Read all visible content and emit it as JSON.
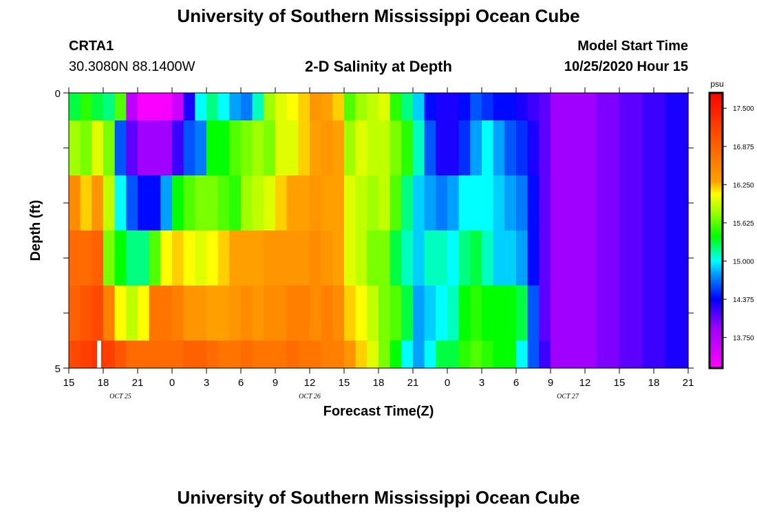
{
  "header": {
    "title": "University of Southern Mississippi Ocean Cube",
    "station_id": "CRTA1",
    "coordinates": "30.3080N 88.1400W",
    "plot_title": "2-D Salinity at Depth",
    "model_start_label": "Model Start Time",
    "model_start_value": "10/25/2020 Hour 15"
  },
  "footer": {
    "title": "University of Southern Mississippi Ocean Cube"
  },
  "chart_data": {
    "type": "heatmap",
    "xlabel": "Forecast Time(Z)",
    "ylabel": "Depth (ft)",
    "ylim": [
      0,
      5
    ],
    "y_tick_labels": [
      "0",
      "5"
    ],
    "x_tick_labels": [
      "15",
      "18",
      "21",
      "0",
      "3",
      "6",
      "9",
      "12",
      "15",
      "18",
      "21",
      "0",
      "3",
      "6",
      "9",
      "12",
      "15",
      "18",
      "21"
    ],
    "date_labels": [
      {
        "label": "OCT 25",
        "hour_index": 4.5
      },
      {
        "label": "OCT 26",
        "hour_index": 21
      },
      {
        "label": "OCT 27",
        "hour_index": 43.5
      }
    ],
    "hours": 54,
    "colorbar": {
      "unit": "psu",
      "min": 13.25,
      "max": 17.75,
      "tick_labels": [
        "17.500",
        "16.875",
        "16.250",
        "15.625",
        "15.000",
        "14.375",
        "13.750"
      ],
      "tick_values": [
        17.5,
        16.875,
        16.25,
        15.625,
        15.0,
        14.375,
        13.75
      ],
      "colors": [
        {
          "v": 13.25,
          "c": "#ff00ff"
        },
        {
          "v": 13.9,
          "c": "#a000ff"
        },
        {
          "v": 14.375,
          "c": "#0000ff"
        },
        {
          "v": 14.8,
          "c": "#00a0ff"
        },
        {
          "v": 15.0,
          "c": "#00ffff"
        },
        {
          "v": 15.4,
          "c": "#00ff00"
        },
        {
          "v": 15.8,
          "c": "#a0ff00"
        },
        {
          "v": 16.1,
          "c": "#ffff00"
        },
        {
          "v": 16.3,
          "c": "#ffa000"
        },
        {
          "v": 16.9,
          "c": "#ff6000"
        },
        {
          "v": 17.75,
          "c": "#ff0000"
        }
      ]
    },
    "depth_layers": [
      {
        "depth_range": [
          0,
          0.5
        ],
        "values": [
          15.3,
          15.5,
          15.3,
          15.2,
          15.6,
          13.7,
          13.3,
          13.3,
          13.3,
          13.6,
          14.3,
          15.0,
          15.2,
          15.0,
          14.8,
          14.7,
          15.1,
          15.8,
          16.0,
          16.1,
          16.2,
          16.4,
          16.3,
          16.2,
          15.6,
          15.8,
          15.9,
          16.0,
          15.5,
          15.2,
          14.9,
          14.4,
          14.3,
          14.3,
          14.4,
          14.6,
          14.5,
          14.4,
          14.4,
          14.3,
          14.2,
          14.1,
          13.9,
          13.9,
          13.9,
          13.9,
          14.0,
          14.0,
          14.1,
          14.1,
          14.2,
          14.2,
          14.3,
          14.3
        ]
      },
      {
        "depth_range": [
          0.5,
          1.5
        ],
        "values": [
          15.8,
          15.7,
          16.0,
          15.7,
          14.6,
          14.1,
          13.9,
          13.9,
          13.9,
          14.2,
          14.6,
          14.7,
          15.4,
          15.4,
          15.6,
          15.7,
          15.8,
          15.7,
          16.0,
          16.0,
          16.2,
          16.3,
          16.4,
          16.3,
          15.8,
          16.0,
          15.9,
          15.9,
          15.7,
          15.5,
          15.1,
          14.6,
          14.3,
          14.3,
          14.5,
          14.8,
          15.0,
          14.8,
          14.6,
          14.5,
          14.3,
          14.1,
          13.9,
          13.9,
          13.9,
          13.9,
          14.0,
          14.0,
          14.1,
          14.1,
          14.2,
          14.2,
          14.3,
          14.3
        ]
      },
      {
        "depth_range": [
          1.5,
          2.5
        ],
        "values": [
          16.5,
          16.2,
          16.4,
          15.9,
          15.0,
          14.6,
          14.4,
          14.4,
          14.8,
          15.4,
          15.6,
          15.7,
          15.7,
          15.6,
          15.5,
          15.8,
          15.9,
          16.0,
          16.2,
          16.3,
          16.3,
          16.4,
          16.3,
          16.3,
          16.0,
          15.9,
          15.8,
          15.9,
          15.6,
          15.2,
          14.9,
          14.8,
          14.7,
          14.8,
          15.0,
          15.0,
          15.0,
          14.9,
          14.8,
          14.7,
          14.4,
          14.1,
          13.9,
          13.9,
          13.9,
          13.9,
          14.0,
          14.0,
          14.1,
          14.1,
          14.2,
          14.2,
          14.3,
          14.3
        ]
      },
      {
        "depth_range": [
          2.5,
          3.5
        ],
        "values": [
          16.8,
          16.8,
          16.9,
          15.7,
          15.4,
          15.2,
          15.2,
          15.6,
          16.1,
          16.2,
          16.1,
          16.0,
          16.1,
          16.2,
          16.3,
          16.3,
          16.3,
          16.4,
          16.4,
          16.4,
          16.4,
          16.5,
          16.4,
          16.3,
          16.0,
          15.9,
          15.7,
          15.7,
          15.3,
          15.1,
          14.9,
          15.1,
          15.1,
          15.0,
          15.2,
          15.3,
          15.1,
          14.9,
          14.9,
          14.8,
          14.4,
          14.1,
          13.9,
          13.9,
          13.9,
          13.9,
          14.0,
          14.0,
          14.1,
          14.1,
          14.2,
          14.2,
          14.3,
          14.3
        ]
      },
      {
        "depth_range": [
          3.5,
          4.5
        ],
        "values": [
          16.9,
          17.0,
          17.1,
          16.6,
          16.1,
          15.9,
          16.1,
          16.7,
          16.7,
          16.6,
          16.4,
          16.4,
          16.3,
          16.3,
          16.4,
          16.5,
          16.4,
          16.5,
          16.5,
          16.6,
          16.6,
          16.5,
          16.6,
          16.5,
          16.2,
          16.1,
          15.9,
          15.7,
          15.6,
          15.3,
          14.8,
          14.9,
          15.0,
          15.1,
          15.4,
          15.5,
          15.4,
          15.4,
          15.4,
          15.3,
          14.6,
          14.1,
          13.9,
          13.9,
          13.9,
          13.9,
          14.0,
          14.0,
          14.1,
          14.1,
          14.2,
          14.2,
          14.3,
          14.3
        ]
      },
      {
        "depth_range": [
          4.5,
          5.0
        ],
        "values": [
          17.1,
          17.2,
          17.3,
          17.2,
          17.0,
          16.8,
          16.8,
          16.8,
          16.8,
          16.8,
          16.9,
          16.9,
          16.8,
          16.7,
          16.7,
          16.8,
          16.7,
          16.7,
          16.7,
          16.8,
          16.7,
          16.7,
          16.6,
          16.6,
          16.4,
          16.2,
          16.0,
          15.7,
          15.4,
          15.0,
          14.8,
          15.0,
          15.3,
          15.3,
          15.5,
          15.6,
          15.5,
          15.4,
          15.4,
          15.0,
          14.6,
          14.2,
          13.9,
          13.9,
          13.9,
          13.9,
          14.0,
          14.0,
          14.1,
          14.1,
          14.2,
          14.2,
          14.3,
          14.3
        ]
      }
    ]
  }
}
